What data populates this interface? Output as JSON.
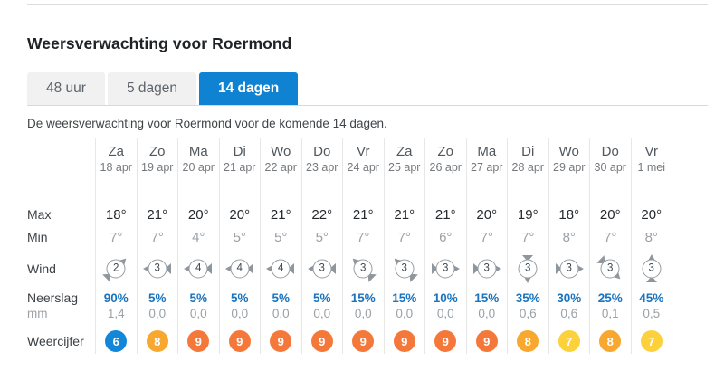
{
  "page": {
    "title": "Weersverwachting voor Roermond",
    "intro": "De weersverwachting voor Roermond voor de komende 14 dagen."
  },
  "tabs": [
    {
      "label": "48 uur",
      "active": false
    },
    {
      "label": "5 dagen",
      "active": false
    },
    {
      "label": "14 dagen",
      "active": true
    }
  ],
  "row_labels": {
    "max": "Max",
    "min": "Min",
    "wind": "Wind",
    "neerslag": "Neerslag",
    "mm": "mm",
    "weercijfer": "Weercijfer"
  },
  "colors": {
    "active_tab_blue": "#0f82d2",
    "precip_link_blue": "#1a73be",
    "grade_blue": "#1286d8",
    "grade_orange": "#f5783b",
    "grade_amber": "#f8a72f",
    "grade_yellow": "#fcd13c"
  },
  "forecast": {
    "columns": [
      {
        "day": "Za",
        "date": "18 apr",
        "max": "18°",
        "min": "7°",
        "wind_bft": "2",
        "wind_dir_deg": -45,
        "neerslag_pct": "90%",
        "neerslag_mm": "1,4",
        "weercijfer": "6",
        "grade_color": "#1286d8"
      },
      {
        "day": "Zo",
        "date": "19 apr",
        "max": "21°",
        "min": "7°",
        "wind_bft": "3",
        "wind_dir_deg": 180,
        "neerslag_pct": "5%",
        "neerslag_mm": "0,0",
        "weercijfer": "8",
        "grade_color": "#f8a72f"
      },
      {
        "day": "Ma",
        "date": "20 apr",
        "max": "20°",
        "min": "4°",
        "wind_bft": "4",
        "wind_dir_deg": 180,
        "neerslag_pct": "5%",
        "neerslag_mm": "0,0",
        "weercijfer": "9",
        "grade_color": "#f5783b"
      },
      {
        "day": "Di",
        "date": "21 apr",
        "max": "20°",
        "min": "5°",
        "wind_bft": "4",
        "wind_dir_deg": 180,
        "neerslag_pct": "5%",
        "neerslag_mm": "0,0",
        "weercijfer": "9",
        "grade_color": "#f5783b"
      },
      {
        "day": "Wo",
        "date": "22 apr",
        "max": "21°",
        "min": "5°",
        "wind_bft": "4",
        "wind_dir_deg": 180,
        "neerslag_pct": "5%",
        "neerslag_mm": "0,0",
        "weercijfer": "9",
        "grade_color": "#f5783b"
      },
      {
        "day": "Do",
        "date": "23 apr",
        "max": "22°",
        "min": "5°",
        "wind_bft": "3",
        "wind_dir_deg": 180,
        "neerslag_pct": "5%",
        "neerslag_mm": "0,0",
        "weercijfer": "9",
        "grade_color": "#f5783b"
      },
      {
        "day": "Vr",
        "date": "24 apr",
        "max": "21°",
        "min": "7°",
        "wind_bft": "3",
        "wind_dir_deg": -135,
        "neerslag_pct": "15%",
        "neerslag_mm": "0,0",
        "weercijfer": "9",
        "grade_color": "#f5783b"
      },
      {
        "day": "Za",
        "date": "25 apr",
        "max": "21°",
        "min": "7°",
        "wind_bft": "3",
        "wind_dir_deg": -135,
        "neerslag_pct": "15%",
        "neerslag_mm": "0,0",
        "weercijfer": "9",
        "grade_color": "#f5783b"
      },
      {
        "day": "Zo",
        "date": "26 apr",
        "max": "21°",
        "min": "6°",
        "wind_bft": "3",
        "wind_dir_deg": 0,
        "neerslag_pct": "10%",
        "neerslag_mm": "0,0",
        "weercijfer": "9",
        "grade_color": "#f5783b"
      },
      {
        "day": "Ma",
        "date": "27 apr",
        "max": "20°",
        "min": "7°",
        "wind_bft": "3",
        "wind_dir_deg": 0,
        "neerslag_pct": "15%",
        "neerslag_mm": "0,0",
        "weercijfer": "9",
        "grade_color": "#f5783b"
      },
      {
        "day": "Di",
        "date": "28 apr",
        "max": "19°",
        "min": "7°",
        "wind_bft": "3",
        "wind_dir_deg": 90,
        "neerslag_pct": "35%",
        "neerslag_mm": "0,6",
        "weercijfer": "8",
        "grade_color": "#f8a72f"
      },
      {
        "day": "Wo",
        "date": "29 apr",
        "max": "18°",
        "min": "8°",
        "wind_bft": "3",
        "wind_dir_deg": 0,
        "neerslag_pct": "30%",
        "neerslag_mm": "0,6",
        "weercijfer": "7",
        "grade_color": "#fcd13c"
      },
      {
        "day": "Do",
        "date": "30 apr",
        "max": "20°",
        "min": "7°",
        "wind_bft": "3",
        "wind_dir_deg": 45,
        "neerslag_pct": "25%",
        "neerslag_mm": "0,1",
        "weercijfer": "8",
        "grade_color": "#f8a72f"
      },
      {
        "day": "Vr",
        "date": "1 mei",
        "max": "20°",
        "min": "8°",
        "wind_bft": "3",
        "wind_dir_deg": -90,
        "neerslag_pct": "45%",
        "neerslag_mm": "0,5",
        "weercijfer": "7",
        "grade_color": "#fcd13c"
      }
    ]
  }
}
